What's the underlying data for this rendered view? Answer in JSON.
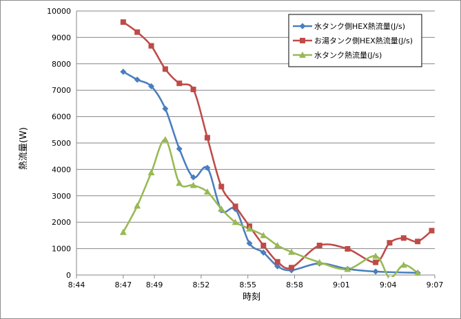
{
  "chart_data": {
    "type": "line",
    "xlabel": "時刻",
    "ylabel": "熱流量(W)",
    "ylim": [
      0,
      10000
    ],
    "yticks": [
      0,
      1000,
      2000,
      3000,
      4000,
      5000,
      6000,
      7000,
      8000,
      9000,
      10000
    ],
    "xlim": [
      "8:44",
      "9:07"
    ],
    "xticks": [
      "8:44",
      "8:47",
      "8:49",
      "8:52",
      "8:55",
      "8:58",
      "9:01",
      "9:04",
      "9:07"
    ],
    "grid": "horizontal",
    "legend_position": "top-right",
    "smooth": true,
    "series": [
      {
        "name": "水タンク側HEX熱流量(J/s)",
        "color": "#4a7ebf",
        "marker": "diamond",
        "points": [
          [
            "8:47:00",
            7700
          ],
          [
            "8:47:54",
            7400
          ],
          [
            "8:48:48",
            7150
          ],
          [
            "8:49:42",
            6300
          ],
          [
            "8:50:36",
            4780
          ],
          [
            "8:51:30",
            3700
          ],
          [
            "8:52:24",
            4060
          ],
          [
            "8:53:18",
            2450
          ],
          [
            "8:54:12",
            2500
          ],
          [
            "8:55:06",
            1200
          ],
          [
            "8:56:00",
            850
          ],
          [
            "8:56:54",
            330
          ],
          [
            "8:57:48",
            180
          ],
          [
            "8:59:36",
            440
          ],
          [
            "9:01:24",
            230
          ],
          [
            "9:03:12",
            130
          ],
          [
            "9:05:54",
            80
          ]
        ]
      },
      {
        "name": "お湯タンク側HEX熱流量(J/s)",
        "color": "#be4b48",
        "marker": "square",
        "points": [
          [
            "8:47:00",
            9580
          ],
          [
            "8:47:54",
            9200
          ],
          [
            "8:48:48",
            8680
          ],
          [
            "8:49:42",
            7800
          ],
          [
            "8:50:36",
            7260
          ],
          [
            "8:51:30",
            7030
          ],
          [
            "8:52:24",
            5200
          ],
          [
            "8:53:18",
            3350
          ],
          [
            "8:54:12",
            2600
          ],
          [
            "8:55:06",
            1850
          ],
          [
            "8:56:00",
            1120
          ],
          [
            "8:56:54",
            500
          ],
          [
            "8:57:48",
            280
          ],
          [
            "8:59:36",
            1120
          ],
          [
            "9:01:24",
            990
          ],
          [
            "9:03:12",
            480
          ],
          [
            "9:04:06",
            1220
          ],
          [
            "9:05:00",
            1400
          ],
          [
            "9:05:54",
            1270
          ],
          [
            "9:06:48",
            1680
          ]
        ]
      },
      {
        "name": "水タンク熱流量(J/s)",
        "color": "#98b954",
        "marker": "triangle",
        "points": [
          [
            "8:47:00",
            1620
          ],
          [
            "8:47:54",
            2620
          ],
          [
            "8:48:48",
            3880
          ],
          [
            "8:49:42",
            5130
          ],
          [
            "8:50:36",
            3480
          ],
          [
            "8:51:30",
            3400
          ],
          [
            "8:52:24",
            3150
          ],
          [
            "8:53:18",
            2500
          ],
          [
            "8:54:12",
            2000
          ],
          [
            "8:55:06",
            1750
          ],
          [
            "8:56:00",
            1500
          ],
          [
            "8:56:54",
            1120
          ],
          [
            "8:57:48",
            870
          ],
          [
            "8:59:36",
            480
          ],
          [
            "9:01:24",
            220
          ],
          [
            "9:03:12",
            720
          ],
          [
            "9:04:06",
            -100
          ],
          [
            "9:05:00",
            380
          ],
          [
            "9:05:54",
            80
          ]
        ]
      }
    ]
  }
}
